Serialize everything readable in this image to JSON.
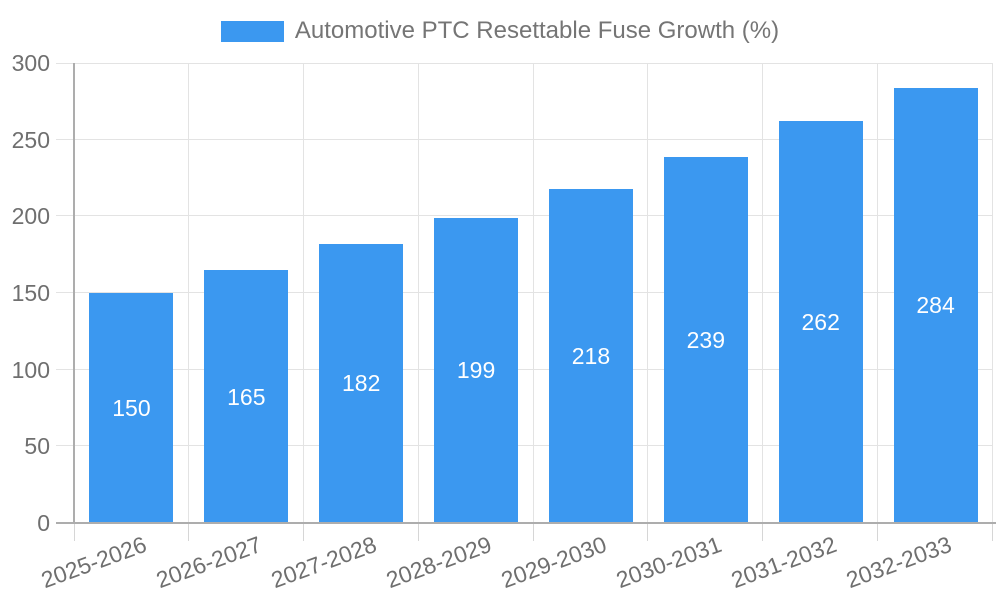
{
  "legend": {
    "label": "Automotive PTC Resettable Fuse Growth (%)"
  },
  "chart_data": {
    "type": "bar",
    "title": "Automotive PTC Resettable Fuse Growth (%)",
    "categories": [
      "2025-2026",
      "2026-2027",
      "2027-2028",
      "2028-2029",
      "2029-2030",
      "2030-2031",
      "2031-2032",
      "2032-2033"
    ],
    "values": [
      150,
      165,
      182,
      199,
      218,
      239,
      262,
      284
    ],
    "value_labels": [
      "150",
      "165",
      "182",
      "199",
      "218",
      "239",
      "262",
      "284"
    ],
    "xlabel": "",
    "ylabel": "",
    "ylim": [
      0,
      300
    ],
    "yticks": [
      0,
      50,
      100,
      150,
      200,
      250,
      300
    ],
    "grid": true,
    "legend_position": "top-center",
    "x_label_rotation_deg": -20,
    "colors": {
      "bar": "#3B98F0",
      "grid": "#E3E3E3",
      "axis_line": "#ADADAD",
      "axis_text": "#6F6F6F",
      "title_text": "#757575",
      "value_text": "#FFFFFF",
      "background": "#FFFFFF"
    }
  }
}
